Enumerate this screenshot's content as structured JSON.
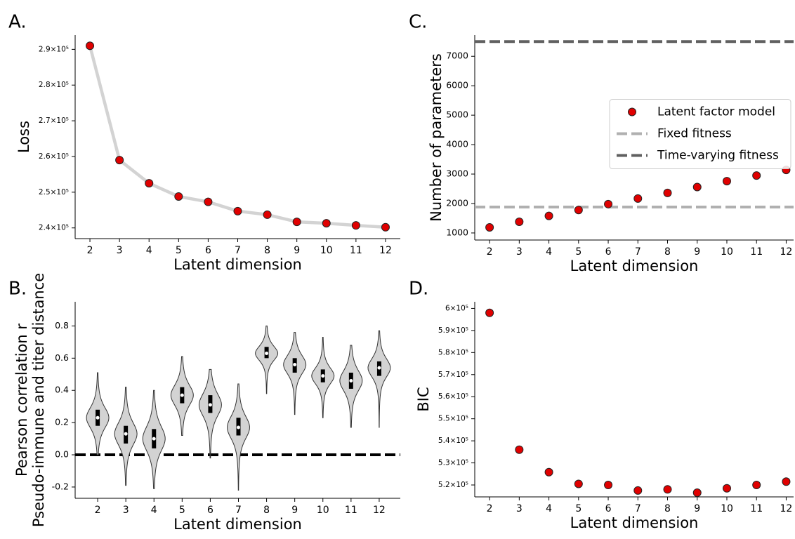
{
  "chart_data": [
    {
      "type": "line",
      "panel_label": "A.",
      "xlabel": "Latent dimension",
      "ylabel": "Loss",
      "x": [
        2,
        3,
        4,
        5,
        6,
        7,
        8,
        9,
        10,
        11,
        12
      ],
      "values": [
        291000,
        259000,
        252500,
        248800,
        247300,
        244700,
        243700,
        241700,
        241300,
        240700,
        240200
      ],
      "color": "#e00000",
      "line_color": "#d3d3d3",
      "xlim": [
        1.5,
        12.5
      ],
      "xticks": [
        2,
        3,
        4,
        5,
        6,
        7,
        8,
        9,
        10,
        11,
        12
      ],
      "ylim": [
        237000,
        294000
      ],
      "yticks": [
        {
          "value": 240000,
          "label": "2.4×10⁵"
        },
        {
          "value": 250000,
          "label": "2.5×10⁵"
        },
        {
          "value": 260000,
          "label": "2.6×10⁵"
        },
        {
          "value": 270000,
          "label": "2.7×10⁵"
        },
        {
          "value": 280000,
          "label": "2.8×10⁵"
        },
        {
          "value": 290000,
          "label": "2.9×10⁵"
        }
      ]
    },
    {
      "type": "violin",
      "panel_label": "B.",
      "xlabel": "Latent dimension",
      "ylabel": [
        "Pearson correlation r",
        "Pseudo-immune and titer distance"
      ],
      "x": [
        2,
        3,
        4,
        5,
        6,
        7,
        8,
        9,
        10,
        11,
        12
      ],
      "min": [
        0.0,
        -0.19,
        -0.21,
        0.12,
        -0.02,
        -0.22,
        0.38,
        0.25,
        0.23,
        0.17,
        0.17
      ],
      "q1": [
        0.18,
        0.07,
        0.04,
        0.32,
        0.26,
        0.12,
        0.6,
        0.51,
        0.45,
        0.41,
        0.49
      ],
      "median": [
        0.23,
        0.13,
        0.1,
        0.37,
        0.31,
        0.17,
        0.63,
        0.56,
        0.49,
        0.46,
        0.54
      ],
      "q3": [
        0.28,
        0.18,
        0.16,
        0.42,
        0.37,
        0.23,
        0.67,
        0.6,
        0.53,
        0.51,
        0.58
      ],
      "max": [
        0.51,
        0.42,
        0.4,
        0.61,
        0.53,
        0.44,
        0.8,
        0.76,
        0.73,
        0.68,
        0.77
      ],
      "color": "#d3d3d3",
      "reference_lines": [
        {
          "value": 0,
          "color": "#000000"
        }
      ],
      "xlim": [
        1.2,
        12.75
      ],
      "xticks": [
        2,
        3,
        4,
        5,
        6,
        7,
        8,
        9,
        10,
        11,
        12
      ],
      "ylim": [
        -0.27,
        0.95
      ],
      "yticks": [
        -0.2,
        {
          "value": 0,
          "label": "0.0"
        },
        0.2,
        0.4,
        0.6,
        0.8
      ]
    },
    {
      "type": "scatter",
      "panel_label": "C.",
      "xlabel": "Latent dimension",
      "ylabel": "Number of parameters",
      "x": [
        2,
        3,
        4,
        5,
        6,
        7,
        8,
        9,
        10,
        11,
        12
      ],
      "series": [
        {
          "name": "Latent factor model",
          "color": "#e00000",
          "values": [
            1190,
            1380,
            1580,
            1780,
            1980,
            2170,
            2360,
            2560,
            2760,
            2950,
            3140
          ]
        }
      ],
      "reference_lines": [
        {
          "name": "Fixed fitness",
          "value": 1880,
          "color": "#b0b0b0"
        },
        {
          "name": "Time-varying fitness",
          "value": 7500,
          "color": "#606060"
        }
      ],
      "legend": "center right",
      "xlim": [
        1.5,
        12.25
      ],
      "xticks": [
        2,
        3,
        4,
        5,
        6,
        7,
        8,
        9,
        10,
        11,
        12
      ],
      "ylim": [
        760,
        7720
      ],
      "yticks": [
        1000,
        2000,
        3000,
        4000,
        5000,
        6000,
        7000
      ]
    },
    {
      "type": "scatter",
      "panel_label": "D.",
      "xlabel": "Latent dimension",
      "ylabel": "BIC",
      "x": [
        2,
        3,
        4,
        5,
        6,
        7,
        8,
        9,
        10,
        11,
        12
      ],
      "values": [
        598000,
        536000,
        525800,
        520500,
        520000,
        517500,
        518000,
        516500,
        518500,
        520000,
        521500
      ],
      "color": "#e00000",
      "xlim": [
        1.5,
        12.25
      ],
      "xticks": [
        2,
        3,
        4,
        5,
        6,
        7,
        8,
        9,
        10,
        11,
        12
      ],
      "ylim": [
        514600,
        603000
      ],
      "yticks": [
        {
          "value": 520000,
          "label": "5.2×10⁵"
        },
        {
          "value": 530000,
          "label": "5.3×10⁵"
        },
        {
          "value": 540000,
          "label": "5.4×10⁵"
        },
        {
          "value": 550000,
          "label": "5.5×10⁵"
        },
        {
          "value": 560000,
          "label": "5.6×10⁵"
        },
        {
          "value": 570000,
          "label": "5.7×10⁵"
        },
        {
          "value": 580000,
          "label": "5.8×10⁵"
        },
        {
          "value": 590000,
          "label": "5.9×10⁵"
        },
        {
          "value": 600000,
          "label": "6×10⁵"
        }
      ]
    }
  ]
}
